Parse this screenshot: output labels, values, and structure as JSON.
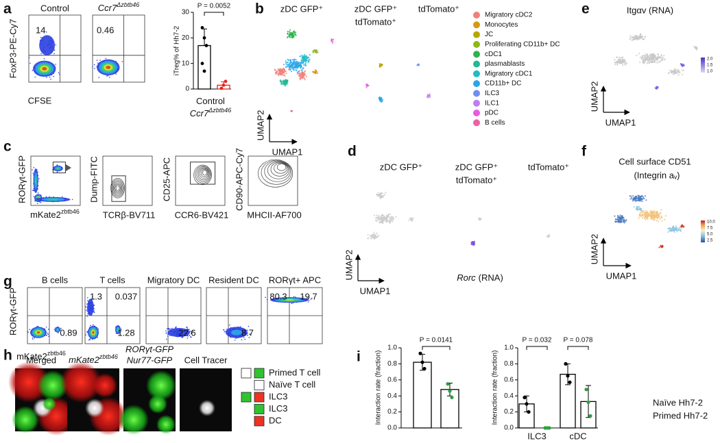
{
  "panel_letters": [
    "a",
    "b",
    "c",
    "d",
    "e",
    "f",
    "g",
    "h",
    "i"
  ],
  "a": {
    "titles": [
      "Control",
      "Ccr7"
    ],
    "title_sup": "Δzbtb46",
    "gate_values": [
      "14",
      "0.46"
    ],
    "y_label": "FoxP3-PE-Cy7",
    "x_label": "CFSE"
  },
  "b": {
    "title_1": "zDC GFP⁺",
    "title_2_lines": [
      "zDC GFP⁺",
      "tdTomato⁺"
    ],
    "title_3": "tdTomato⁺",
    "y_axis": "UMAP2",
    "x_axis": "UMAP1",
    "legend": [
      {
        "label": "Migratory cDC2",
        "color": "#f0807a"
      },
      {
        "label": "Monocytes",
        "color": "#d49a16"
      },
      {
        "label": "JC",
        "color": "#b8a600"
      },
      {
        "label": "Proliferating CD11b+ DC",
        "color": "#8cb81c"
      },
      {
        "label": "cDC1",
        "color": "#2db34c"
      },
      {
        "label": "plasmablasts",
        "color": "#22b996"
      },
      {
        "label": "Migratory cDC1",
        "color": "#1cbcc8"
      },
      {
        "label": "CD11b+ DC",
        "color": "#28a6e8"
      },
      {
        "label": "ILC3",
        "color": "#6f8ff2"
      },
      {
        "label": "ILC1",
        "color": "#c07cf2"
      },
      {
        "label": "pDC",
        "color": "#e85ae4"
      },
      {
        "label": "B cells",
        "color": "#f060a8"
      }
    ]
  },
  "c": {
    "y_labels": [
      "RORγt-GFP",
      "Dump-FITC",
      "CD25-APC",
      "CD90-APC-Cy7"
    ],
    "x_labels": [
      "mKate2",
      "TCRβ-BV711",
      "CCR6-BV421",
      "MHCII-AF700"
    ],
    "x_label_sup": "zbtb46"
  },
  "d": {
    "title_1": "zDC GFP⁺",
    "title_2_lines": [
      "zDC GFP⁺",
      "tdTomato⁺"
    ],
    "title_3": "tdTomato⁺",
    "y_axis": "UMAP2",
    "x_axis": "UMAP1",
    "annotation_gene": "Rorc",
    "annotation_suffix": "(RNA)"
  },
  "e": {
    "title": "Itgαv (RNA)",
    "colorbar_ticks": [
      "2.0",
      "1.5",
      "1.0"
    ],
    "y_axis": "UMAP2",
    "x_axis": "UMAP1"
  },
  "f": {
    "title_lines": [
      "Cell surface CD51",
      "(Integrin aᵥ)"
    ],
    "colorbar_ticks": [
      "10.0",
      "7.5",
      "5.0",
      "2.5"
    ],
    "y_axis": "UMAP2",
    "x_axis": "UMAP1"
  },
  "g": {
    "titles": [
      "B cells",
      "T cells",
      "Migratory DC",
      "Resident DC",
      "RORγt+ APC"
    ],
    "y_label": "RORγt-GFP",
    "x_label": "mKate2",
    "x_label_sup": "zbtb46",
    "quadrant_values": [
      {
        "lower_right": "0.89"
      },
      {
        "upper_left": "1.3",
        "upper_right": "0.037",
        "lower_right": "1.28"
      },
      {
        "lower_right": "22.6"
      },
      {
        "lower_right": "8.7"
      },
      {
        "upper_left": "80.3",
        "upper_right": "19.7"
      }
    ]
  },
  "h": {
    "titles": [
      "Merged",
      "mKate2",
      "RORγt-GFP",
      "Cell Tracer"
    ],
    "title_2_sup": "zbtb46",
    "title_3_line2": "Nur77-GFP",
    "legend": [
      {
        "label": "Primed T cell",
        "boxes": [
          "#ffffff",
          "#2fc42f"
        ]
      },
      {
        "label": "Naïve T cell",
        "boxes": [
          null,
          "#ffffff"
        ]
      },
      {
        "label": "ILC3",
        "boxes": [
          "#2fc42f",
          "#ee3322"
        ]
      },
      {
        "label": "ILC3",
        "boxes": [
          null,
          "#2fc42f"
        ]
      },
      {
        "label": "DC",
        "boxes": [
          null,
          "#ee3322"
        ]
      }
    ]
  },
  "chart_data": [
    {
      "type": "bar",
      "y_label": "iTreg% of Hh7-2",
      "categories": [
        "Control",
        "Ccr7"
      ],
      "category_sups": [
        null,
        "Δzbtb46"
      ],
      "values": [
        17,
        1.5
      ],
      "errors": [
        6.5,
        1.3
      ],
      "points": [
        [
          24,
          20,
          17,
          10,
          7
        ],
        [
          0.3,
          1.5,
          3
        ]
      ],
      "colors": [
        "#000000",
        "#e8211c"
      ],
      "ylim": [
        0,
        30
      ],
      "yticks": [
        0,
        10,
        20,
        30
      ],
      "annotations": [
        "P = 0.0052"
      ]
    },
    {
      "type": "bar",
      "y_label": "Interaction rate (fraction)",
      "categories": [
        null
      ],
      "series": [
        {
          "color": "#000000",
          "values": [
            0.82
          ],
          "errors": [
            0.1
          ],
          "points": [
            [
              0.93,
              0.82,
              0.74
            ]
          ]
        },
        {
          "color": "#2ea043",
          "values": [
            0.48
          ],
          "errors": [
            0.08
          ],
          "points": [
            [
              0.55,
              0.46,
              0.38
            ]
          ]
        }
      ],
      "ylim": [
        0,
        1.0
      ],
      "yticks": [
        {
          "value": 0,
          "label": "0.0"
        },
        0.2,
        0.4,
        0.6,
        0.8,
        {
          "value": 1,
          "label": "1.0"
        }
      ],
      "annotations": [
        "P = 0.0141"
      ]
    },
    {
      "type": "bar",
      "y_label": "Interaction rate (fraction)",
      "categories": [
        "ILC3",
        "cDC"
      ],
      "series": [
        {
          "name": "Naïve Hh7-2",
          "color": "#000000",
          "values": [
            0.3,
            0.67
          ],
          "errors": [
            0.1,
            0.13
          ],
          "points": [
            [
              0.38,
              0.3,
              0.2
            ],
            [
              0.8,
              0.65,
              0.57
            ]
          ]
        },
        {
          "name": "Primed Hh7-2",
          "color": "#2ea043",
          "values": [
            0,
            0.33
          ],
          "errors": [
            0,
            0.2
          ],
          "points": [
            [
              0,
              0,
              0
            ],
            [
              0.48,
              0.32,
              0.15
            ]
          ]
        }
      ],
      "ylim": [
        0,
        1.0
      ],
      "yticks": [
        {
          "value": 0,
          "label": "0.0"
        },
        0.2,
        0.4,
        0.6,
        0.8,
        {
          "value": 1,
          "label": "1.0"
        }
      ],
      "annotations": [
        "P = 0.032",
        "P = 0.078"
      ]
    }
  ]
}
